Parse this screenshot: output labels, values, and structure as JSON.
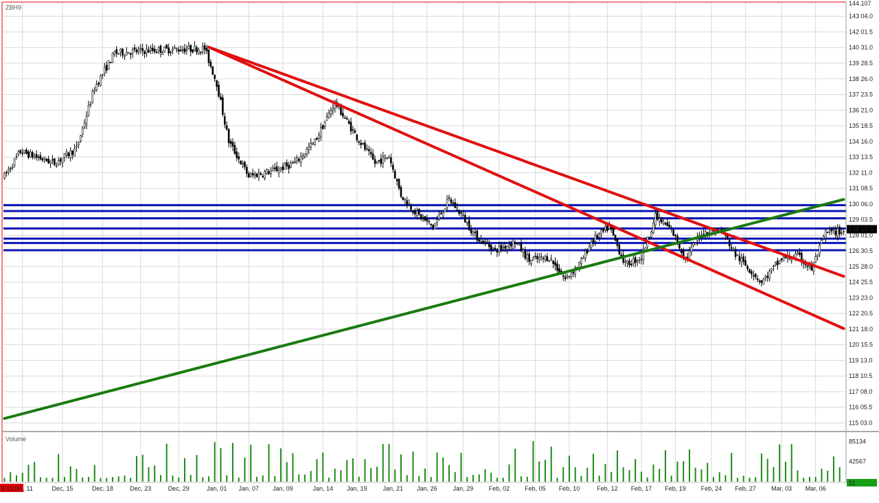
{
  "chart_data": {
    "type": "candlestick",
    "symbol": "ZBH9",
    "price_axis": {
      "min": 114.5,
      "max": 144.107,
      "ticks": [
        "143 04.0",
        "142 01.5",
        "140 31.0",
        "139 28.5",
        "138 26.0",
        "137 23.5",
        "136 21.0",
        "135 18.5",
        "134 16.0",
        "133 13.5",
        "132 11.0",
        "131 08.5",
        "130 06.0",
        "129 03.5",
        "128 01.0",
        "126 30.5",
        "125 28.0",
        "124 25.5",
        "123 23.0",
        "122 20.5",
        "121 18.0",
        "120 15.5",
        "119 13.0",
        "118 10.5",
        "117 08.0",
        "116 05.5",
        "115 03.0"
      ],
      "tick_values": [
        143.125,
        142.047,
        140.969,
        139.891,
        138.813,
        137.734,
        136.656,
        135.578,
        134.5,
        133.422,
        132.344,
        131.266,
        130.188,
        129.109,
        128.031,
        126.953,
        125.875,
        124.797,
        123.719,
        122.641,
        121.563,
        120.484,
        119.406,
        118.328,
        117.25,
        116.172,
        115.094
      ],
      "top_label": "144.107",
      "last_label": "128 14.5",
      "last_value": 128.45
    },
    "x_axis": {
      "labels": [
        "Dec, 11",
        "Dec, 15",
        "Dec, 18",
        "Dec, 23",
        "Dec, 29",
        "Jan, 01",
        "Jan, 07",
        "Jan, 09",
        "Jan, 14",
        "Jan, 19",
        "Jan, 21",
        "Jan, 26",
        "Jan, 29",
        "Feb, 02",
        "Feb, 05",
        "Feb, 10",
        "Feb, 12",
        "Feb, 17",
        "Feb, 19",
        "Feb, 24",
        "Feb, 27",
        "Mar, 03",
        "Mar, 06"
      ],
      "label_index": [
        9,
        29,
        49,
        68,
        87,
        106,
        122,
        139,
        159,
        176,
        194,
        211,
        229,
        247,
        265,
        282,
        301,
        318,
        335,
        353,
        370,
        388,
        405
      ],
      "time_badge": "8 11:00",
      "bar_count": 420
    },
    "anchors": [
      [
        0,
        132.1
      ],
      [
        8,
        133.8
      ],
      [
        25,
        133.0
      ],
      [
        36,
        134.0
      ],
      [
        45,
        138.2
      ],
      [
        55,
        140.6
      ],
      [
        75,
        140.8
      ],
      [
        100,
        140.9
      ],
      [
        106,
        138.5
      ],
      [
        112,
        134.5
      ],
      [
        122,
        132.1
      ],
      [
        135,
        132.5
      ],
      [
        145,
        133.0
      ],
      [
        155,
        134.5
      ],
      [
        165,
        137.2
      ],
      [
        175,
        135.0
      ],
      [
        185,
        133.0
      ],
      [
        192,
        133.5
      ],
      [
        198,
        130.8
      ],
      [
        206,
        129.5
      ],
      [
        214,
        128.6
      ],
      [
        222,
        130.5
      ],
      [
        228,
        129.5
      ],
      [
        235,
        128.0
      ],
      [
        245,
        127.0
      ],
      [
        255,
        127.6
      ],
      [
        262,
        126.3
      ],
      [
        272,
        126.5
      ],
      [
        280,
        125.0
      ],
      [
        288,
        126.2
      ],
      [
        293,
        127.6
      ],
      [
        302,
        128.6
      ],
      [
        310,
        126.0
      ],
      [
        318,
        126.5
      ],
      [
        325,
        129.3
      ],
      [
        333,
        128.4
      ],
      [
        340,
        126.4
      ],
      [
        348,
        128.2
      ],
      [
        358,
        128.4
      ],
      [
        365,
        126.7
      ],
      [
        378,
        124.8
      ],
      [
        388,
        126.4
      ],
      [
        396,
        126.6
      ],
      [
        403,
        125.7
      ],
      [
        410,
        128.2
      ],
      [
        418,
        128.3
      ]
    ],
    "volume": {
      "label": "Volume",
      "max": 100000,
      "ticks": [
        "85134",
        "42567"
      ],
      "tick_values": [
        85134,
        42567
      ],
      "last_label": "51",
      "last_value": 51
    },
    "trendlines": [
      {
        "color": "#e01010",
        "from": [
          102,
          141.0
        ],
        "to": [
          420,
          125.2
        ]
      },
      {
        "color": "#e01010",
        "from": [
          102,
          141.0
        ],
        "to": [
          420,
          121.6
        ]
      },
      {
        "color": "#1a7a10",
        "from": [
          0,
          115.4
        ],
        "to": [
          420,
          130.5
        ]
      }
    ],
    "horizontal_levels": {
      "color": "#0a14b4",
      "values": [
        130.1,
        129.7,
        129.2,
        128.5,
        127.8,
        127.5,
        127.0
      ]
    },
    "colors": {
      "candle": "#000000",
      "volume_bar": "#1b8a14",
      "grid": "#d8d8d8",
      "axis_line": "#e00000",
      "last_price_bg": "#000000",
      "volume_last_bg": "#19a019",
      "time_badge_bg": "#e00000"
    }
  }
}
